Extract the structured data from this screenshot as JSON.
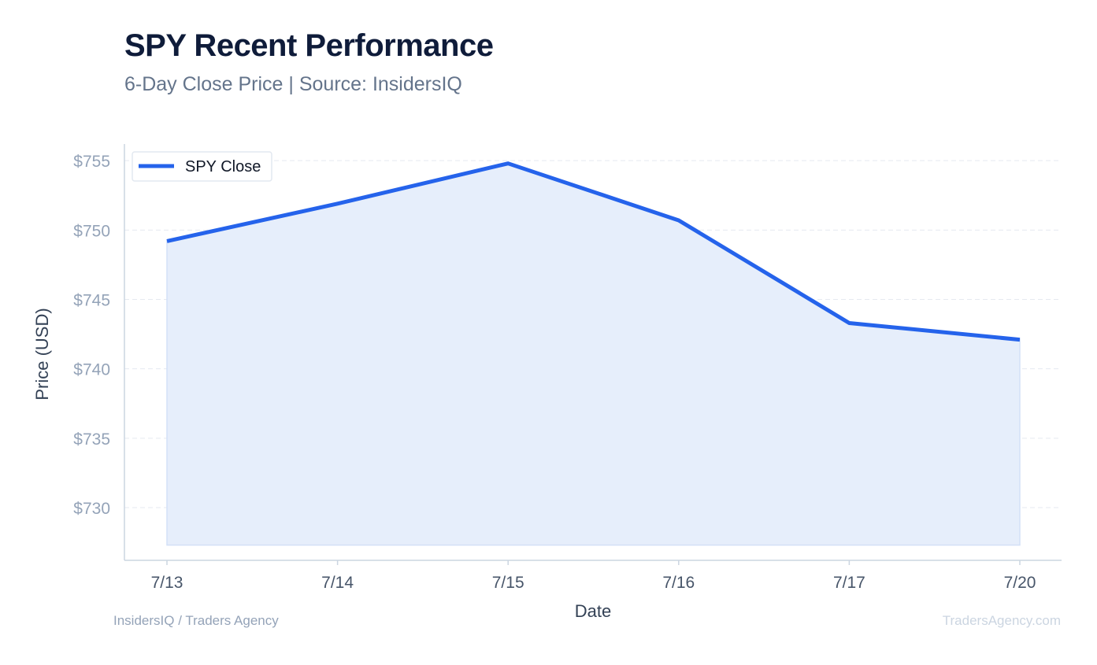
{
  "header": {
    "title": "SPY Recent Performance",
    "subtitle": "6-Day Close Price | Source: InsidersIQ"
  },
  "footer": {
    "left": "InsidersIQ / Traders Agency",
    "right": "TradersAgency.com"
  },
  "chart_data": {
    "type": "area",
    "title": "SPY Recent Performance",
    "subtitle": "6-Day Close Price | Source: InsidersIQ",
    "xlabel": "Date",
    "ylabel": "Price (USD)",
    "categories": [
      "7/13",
      "7/14",
      "7/15",
      "7/16",
      "7/17",
      "7/20"
    ],
    "series": [
      {
        "name": "SPY Close",
        "values": [
          749.2,
          751.9,
          754.8,
          750.7,
          743.3,
          742.1
        ]
      }
    ],
    "yticks": [
      730,
      735,
      740,
      745,
      750,
      755
    ],
    "ytick_labels": [
      "$730",
      "$735",
      "$740",
      "$745",
      "$750",
      "$755"
    ],
    "ylim": [
      726.2,
      756.2
    ],
    "fill_baseline": 727.3,
    "grid": "horizontal-dashed",
    "legend_position": "top-left",
    "colors": {
      "line": "#2563eb",
      "fill": "#e6eefb",
      "grid": "#e5e9f0",
      "axis": "#cbd5e1",
      "tick_text": "#94a3b8",
      "x_tick_text": "#475569",
      "axis_label": "#334155"
    }
  }
}
